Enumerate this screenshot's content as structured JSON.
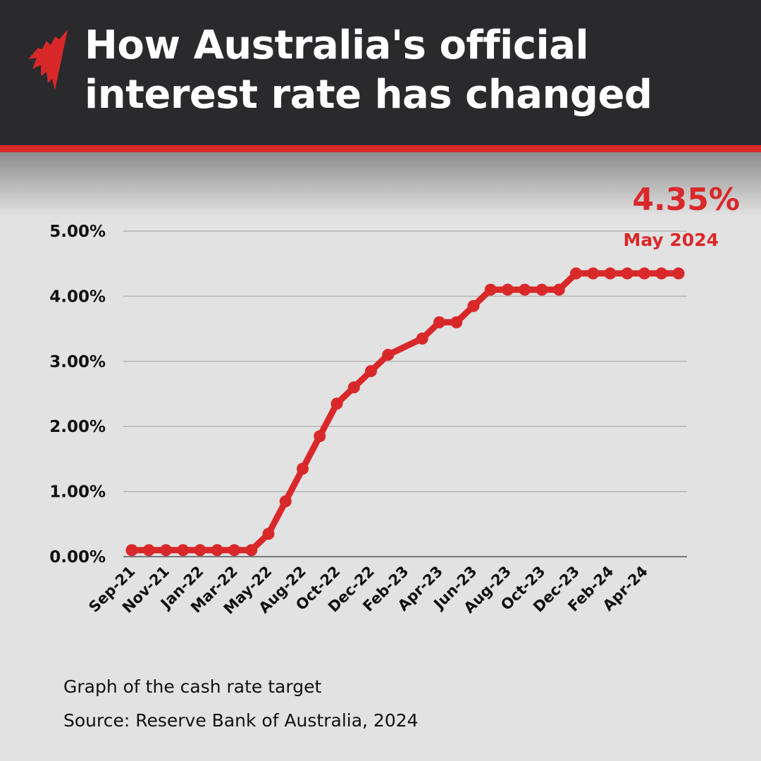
{
  "header": {
    "title_line1": "How Australia's official",
    "title_line2": "interest rate has changed",
    "logo": "SBS news logo"
  },
  "callout": {
    "value": "4.35%",
    "date": "May 2024"
  },
  "footer": {
    "caption": "Graph of the cash rate target",
    "source": "Source: Reserve Bank of Australia, 2024"
  },
  "colors": {
    "accent": "#d9282a",
    "header_bg": "#2a2a2c",
    "background": "#e2e2e2",
    "grid": "#b5b5b5"
  },
  "chart_data": {
    "type": "line",
    "title": "",
    "xlabel": "",
    "ylabel": "",
    "ylim": [
      0,
      5
    ],
    "grid": true,
    "y_ticks": [
      "0.00%",
      "1.00%",
      "2.00%",
      "3.00%",
      "4.00%",
      "5.00%"
    ],
    "x_tick_labels": [
      "Sep-21",
      "Nov-21",
      "Jan-22",
      "Mar-22",
      "May-22",
      "Aug-22",
      "Oct-22",
      "Dec-22",
      "Feb-23",
      "Apr-23",
      "Jun-23",
      "Aug-23",
      "Oct-23",
      "Dec-23",
      "Feb-24",
      "Apr-24"
    ],
    "series": [
      {
        "values": [
          0.1,
          0.1,
          0.1,
          0.1,
          0.1,
          0.1,
          0.1,
          0.1,
          0.35,
          0.85,
          1.35,
          1.85,
          2.35,
          2.6,
          2.85,
          3.1,
          null,
          3.35,
          3.6,
          3.6,
          3.85,
          4.1,
          4.1,
          4.1,
          4.1,
          4.1,
          4.35,
          4.35,
          4.35,
          4.35,
          4.35,
          4.35,
          4.35
        ]
      }
    ]
  }
}
